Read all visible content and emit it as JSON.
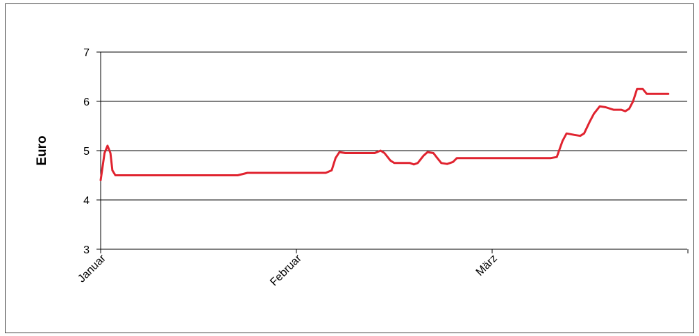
{
  "chart_data": {
    "type": "line",
    "title": "",
    "xlabel": "",
    "ylabel": "Euro",
    "ylim": [
      3,
      7
    ],
    "yticks": [
      3,
      4,
      5,
      6,
      7
    ],
    "grid": true,
    "categories": [
      "Januar",
      "Februar",
      "März"
    ],
    "line_color": "#e0232f",
    "series": [
      {
        "values": [
          [
            0.0,
            4.4
          ],
          [
            0.02,
            4.95
          ],
          [
            0.035,
            5.1
          ],
          [
            0.05,
            4.95
          ],
          [
            0.06,
            4.6
          ],
          [
            0.075,
            4.5
          ],
          [
            0.1,
            4.5
          ],
          [
            0.3,
            4.5
          ],
          [
            0.5,
            4.5
          ],
          [
            0.7,
            4.5
          ],
          [
            0.75,
            4.55
          ],
          [
            0.9,
            4.55
          ],
          [
            1.0,
            4.55
          ],
          [
            1.12,
            4.55
          ],
          [
            1.15,
            4.55
          ],
          [
            1.18,
            4.6
          ],
          [
            1.2,
            4.85
          ],
          [
            1.22,
            4.97
          ],
          [
            1.25,
            4.95
          ],
          [
            1.4,
            4.95
          ],
          [
            1.43,
            5.0
          ],
          [
            1.45,
            4.95
          ],
          [
            1.48,
            4.8
          ],
          [
            1.5,
            4.75
          ],
          [
            1.58,
            4.75
          ],
          [
            1.6,
            4.72
          ],
          [
            1.62,
            4.75
          ],
          [
            1.65,
            4.9
          ],
          [
            1.67,
            4.97
          ],
          [
            1.7,
            4.95
          ],
          [
            1.72,
            4.85
          ],
          [
            1.74,
            4.75
          ],
          [
            1.77,
            4.73
          ],
          [
            1.8,
            4.77
          ],
          [
            1.82,
            4.85
          ],
          [
            1.9,
            4.85
          ],
          [
            2.0,
            4.85
          ],
          [
            2.2,
            4.85
          ],
          [
            2.3,
            4.85
          ],
          [
            2.33,
            4.87
          ],
          [
            2.36,
            5.2
          ],
          [
            2.38,
            5.35
          ],
          [
            2.42,
            5.32
          ],
          [
            2.45,
            5.3
          ],
          [
            2.47,
            5.35
          ],
          [
            2.5,
            5.6
          ],
          [
            2.52,
            5.75
          ],
          [
            2.55,
            5.9
          ],
          [
            2.58,
            5.88
          ],
          [
            2.62,
            5.83
          ],
          [
            2.66,
            5.83
          ],
          [
            2.68,
            5.8
          ],
          [
            2.7,
            5.85
          ],
          [
            2.72,
            6.0
          ],
          [
            2.74,
            6.25
          ],
          [
            2.77,
            6.25
          ],
          [
            2.79,
            6.15
          ],
          [
            2.85,
            6.15
          ],
          [
            2.9,
            6.15
          ]
        ]
      }
    ]
  }
}
